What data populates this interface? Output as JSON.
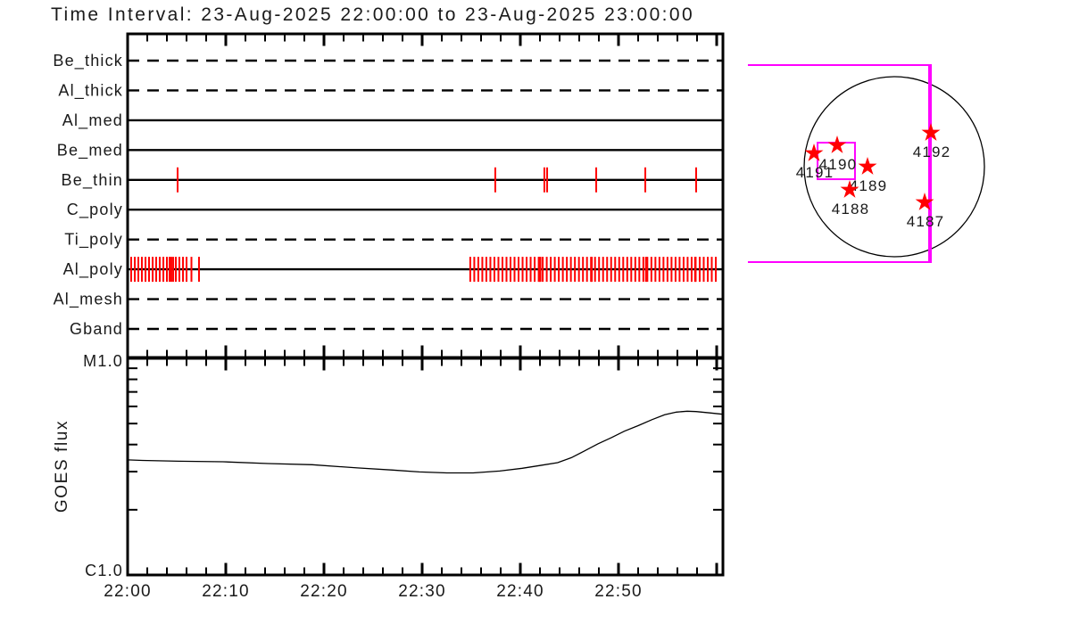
{
  "title": "Time Interval: 23-Aug-2025 22:00:00 to 23-Aug-2025 23:00:00",
  "colors": {
    "axis": "#000000",
    "exposure_tick": "#ff0000",
    "fov_box": "#ff00ff",
    "active_region_star": "#ff0000",
    "background": "#ffffff"
  },
  "chart_data": [
    {
      "type": "scatter",
      "title": "XRT filter exposure timeline",
      "x_axis": {
        "start": "22:00",
        "end": "23:00",
        "minutes_range": [
          0,
          60.6
        ],
        "minor_tick_minutes": 2,
        "major_tick_minutes": 10
      },
      "rows": [
        {
          "label": "Be_thick",
          "line_style": "dashed",
          "exposures_min": []
        },
        {
          "label": "Al_thick",
          "line_style": "dashed",
          "exposures_min": []
        },
        {
          "label": "Al_med",
          "line_style": "solid",
          "exposures_min": []
        },
        {
          "label": "Be_med",
          "line_style": "solid",
          "exposures_min": []
        },
        {
          "label": "Be_thin",
          "line_style": "solid",
          "exposures_min": [
            5.09,
            37.45,
            42.45,
            42.73,
            47.73,
            52.73,
            57.91
          ]
        },
        {
          "label": "C_poly",
          "line_style": "solid",
          "exposures_min": []
        },
        {
          "label": "Ti_poly",
          "line_style": "dashed",
          "exposures_min": []
        },
        {
          "label": "Al_poly",
          "line_style": "solid",
          "exposures_min": [
            0.0,
            0.36,
            0.73,
            1.09,
            1.45,
            1.82,
            2.18,
            2.55,
            2.91,
            3.27,
            3.64,
            4.0,
            4.27,
            4.45,
            4.64,
            4.91,
            5.27,
            5.64,
            6.0,
            6.5,
            7.27,
            34.9,
            35.31,
            35.72,
            36.13,
            36.54,
            36.95,
            37.36,
            37.77,
            38.18,
            38.59,
            39.0,
            39.41,
            39.82,
            40.23,
            40.64,
            41.05,
            41.46,
            41.87,
            41.95,
            42.05,
            42.28,
            42.69,
            43.1,
            43.51,
            43.92,
            44.33,
            44.74,
            45.15,
            45.56,
            45.97,
            46.38,
            46.79,
            47.2,
            47.28,
            47.61,
            48.02,
            48.43,
            48.84,
            49.25,
            49.66,
            50.07,
            50.48,
            50.89,
            51.3,
            51.71,
            52.12,
            52.53,
            52.8,
            52.94,
            53.35,
            53.76,
            54.17,
            54.58,
            54.99,
            55.4,
            55.81,
            56.22,
            56.63,
            57.04,
            57.45,
            57.8,
            57.86,
            58.27,
            58.68,
            59.09,
            59.5,
            59.91
          ]
        },
        {
          "label": "Al_mesh",
          "line_style": "dashed",
          "exposures_min": []
        },
        {
          "label": "Gband",
          "line_style": "dashed",
          "exposures_min": []
        }
      ]
    },
    {
      "type": "line",
      "ylabel": "GOES flux",
      "y_scale": "log",
      "ylim_wm2": [
        1e-06,
        1e-05
      ],
      "y_ticks": [
        {
          "label": "M1.0",
          "value_wm2": 1e-05
        },
        {
          "label": "C1.0",
          "value_wm2": 1e-06
        }
      ],
      "x_tick_labels": [
        "22:00",
        "22:10",
        "22:20",
        "22:30",
        "22:40",
        "22:50"
      ],
      "x_major_tick_minutes": 10,
      "x_minor_tick_minutes": 2,
      "x_minutes": [
        0,
        1.5,
        5.2,
        9.7,
        14.3,
        18.8,
        23.4,
        27.0,
        29.7,
        32.5,
        35.2,
        37.9,
        40.2,
        42.0,
        43.8,
        45.2,
        46.5,
        47.9,
        49.3,
        50.6,
        52.0,
        53.4,
        54.7,
        55.9,
        57.0,
        57.9,
        59.3,
        60.6
      ],
      "flux_wm2": [
        3.4e-06,
        3.38e-06,
        3.35e-06,
        3.33e-06,
        3.27e-06,
        3.23e-06,
        3.12e-06,
        3.05e-06,
        2.99e-06,
        2.96e-06,
        2.96e-06,
        3.02e-06,
        3.11e-06,
        3.2e-06,
        3.3e-06,
        3.48e-06,
        3.73e-06,
        4.03e-06,
        4.31e-06,
        4.61e-06,
        4.89e-06,
        5.21e-06,
        5.49e-06,
        5.65e-06,
        5.7e-06,
        5.68e-06,
        5.6e-06,
        5.52e-06
      ]
    },
    {
      "type": "scatter",
      "title": "Solar disk with active regions (positions in solar-radius units)",
      "active_regions": [
        {
          "label": "4191",
          "x": -0.891,
          "y": -0.149
        },
        {
          "label": "4190",
          "x": -0.634,
          "y": -0.238
        },
        {
          "label": "4189",
          "x": -0.297,
          "y": 0.0
        },
        {
          "label": "4188",
          "x": -0.495,
          "y": 0.257
        },
        {
          "label": "4192",
          "x": 0.406,
          "y": -0.376
        },
        {
          "label": "4187",
          "x": 0.337,
          "y": 0.396
        }
      ],
      "fov_box": {
        "x1": -1.624,
        "y1": -1.129,
        "x2": 0.396,
        "y2": 1.059,
        "open_left": true
      },
      "target_box": {
        "x1": -0.851,
        "y1": -0.267,
        "x2": -0.436,
        "y2": 0.139
      }
    }
  ]
}
